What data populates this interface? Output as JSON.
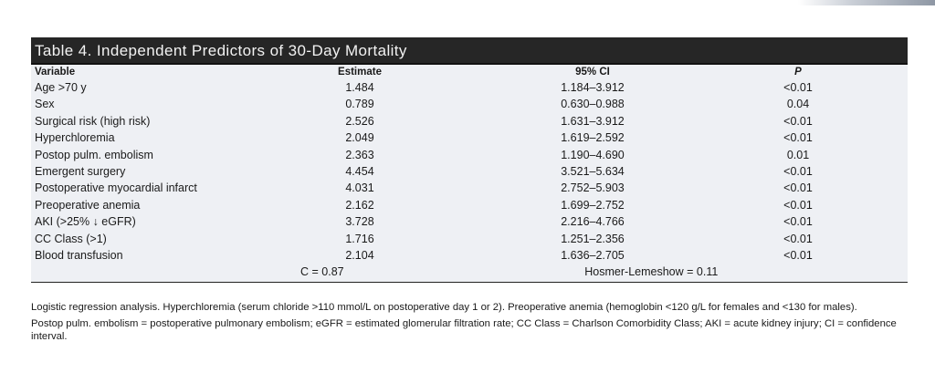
{
  "table": {
    "title": "Table 4.  Independent Predictors of 30-Day Mortality",
    "columns": [
      "Variable",
      "Estimate",
      "95% CI",
      "P"
    ],
    "rows": [
      {
        "variable": "Age >70 y",
        "estimate": "1.484",
        "ci": "1.184–3.912",
        "p": "<0.01"
      },
      {
        "variable": "Sex",
        "estimate": "0.789",
        "ci": "0.630–0.988",
        "p": "0.04"
      },
      {
        "variable": "Surgical risk (high risk)",
        "estimate": "2.526",
        "ci": "1.631–3.912",
        "p": "<0.01"
      },
      {
        "variable": "Hyperchloremia",
        "estimate": "2.049",
        "ci": "1.619–2.592",
        "p": "<0.01"
      },
      {
        "variable": "Postop pulm. embolism",
        "estimate": "2.363",
        "ci": "1.190–4.690",
        "p": "0.01"
      },
      {
        "variable": "Emergent surgery",
        "estimate": "4.454",
        "ci": "3.521–5.634",
        "p": "<0.01"
      },
      {
        "variable": "Postoperative myocardial infarct",
        "estimate": "4.031",
        "ci": "2.752–5.903",
        "p": "<0.01"
      },
      {
        "variable": "Preoperative anemia",
        "estimate": "2.162",
        "ci": "1.699–2.752",
        "p": "<0.01"
      },
      {
        "variable": "AKI (>25% ↓ eGFR)",
        "estimate": "3.728",
        "ci": "2.216–4.766",
        "p": "<0.01"
      },
      {
        "variable": "CC Class (>1)",
        "estimate": "1.716",
        "ci": "1.251–2.356",
        "p": "<0.01"
      },
      {
        "variable": "Blood transfusion",
        "estimate": "2.104",
        "ci": "1.636–2.705",
        "p": "<0.01"
      }
    ],
    "c_statistic": "C = 0.87",
    "hosmer_lemeshow": "Hosmer-Lemeshow = 0.11"
  },
  "notes": [
    "Logistic regression analysis. Hyperchloremia (serum chloride >110 mmol/L on postoperative day 1 or 2). Preoperative anemia (hemoglobin <120 g/L for females and <130 for males).",
    "Postop pulm. embolism = postoperative pulmonary embolism; eGFR = estimated glomerular filtration rate; CC Class = Charlson Comorbidity Class; AKI = acute kidney injury; CI = confidence interval."
  ]
}
